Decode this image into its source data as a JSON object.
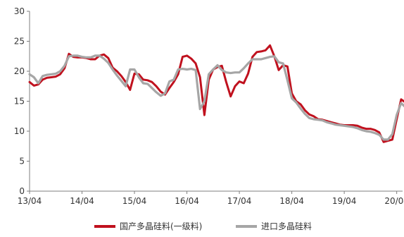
{
  "chart_data": {
    "type": "line",
    "title": "",
    "xlabel": "",
    "ylabel": "",
    "ylim": [
      0,
      30
    ],
    "y_ticks": [
      0,
      5,
      10,
      15,
      20,
      25,
      30
    ],
    "x_tick_labels": [
      "13/04",
      "14/04",
      "15/04",
      "16/04",
      "17/04",
      "18/04",
      "19/04",
      "20/04"
    ],
    "grid": false,
    "legend_position": "bottom",
    "series": [
      {
        "name": "国产多晶硅料(一级料)",
        "color": "#c0111e",
        "points": [
          [
            "2013-04",
            18.2
          ],
          [
            "2013-05",
            17.6
          ],
          [
            "2013-06",
            17.8
          ],
          [
            "2013-07",
            18.6
          ],
          [
            "2013-08",
            18.9
          ],
          [
            "2013-09",
            19.0
          ],
          [
            "2013-10",
            19.1
          ],
          [
            "2013-11",
            19.5
          ],
          [
            "2013-12",
            20.5
          ],
          [
            "2014-01",
            22.9
          ],
          [
            "2014-02",
            22.4
          ],
          [
            "2014-03",
            22.3
          ],
          [
            "2014-04",
            22.3
          ],
          [
            "2014-05",
            22.2
          ],
          [
            "2014-06",
            22.0
          ],
          [
            "2014-07",
            22.0
          ],
          [
            "2014-08",
            22.6
          ],
          [
            "2014-09",
            22.8
          ],
          [
            "2014-10",
            22.2
          ],
          [
            "2014-11",
            20.6
          ],
          [
            "2014-12",
            20.0
          ],
          [
            "2015-01",
            19.2
          ],
          [
            "2015-02",
            18.2
          ],
          [
            "2015-03",
            16.9
          ],
          [
            "2015-04",
            19.6
          ],
          [
            "2015-05",
            19.5
          ],
          [
            "2015-06",
            18.6
          ],
          [
            "2015-07",
            18.5
          ],
          [
            "2015-08",
            18.2
          ],
          [
            "2015-09",
            17.5
          ],
          [
            "2015-10",
            16.6
          ],
          [
            "2015-11",
            16.1
          ],
          [
            "2015-12",
            17.2
          ],
          [
            "2016-01",
            18.2
          ],
          [
            "2016-02",
            19.5
          ],
          [
            "2016-03",
            22.4
          ],
          [
            "2016-04",
            22.6
          ],
          [
            "2016-05",
            22.1
          ],
          [
            "2016-06",
            21.3
          ],
          [
            "2016-07",
            19.0
          ],
          [
            "2016-08",
            12.7
          ],
          [
            "2016-09",
            18.6
          ],
          [
            "2016-10",
            20.3
          ],
          [
            "2016-11",
            20.7
          ],
          [
            "2016-12",
            20.9
          ],
          [
            "2017-01",
            18.2
          ],
          [
            "2017-02",
            15.8
          ],
          [
            "2017-03",
            17.5
          ],
          [
            "2017-04",
            18.3
          ],
          [
            "2017-05",
            18.0
          ],
          [
            "2017-06",
            19.6
          ],
          [
            "2017-07",
            22.4
          ],
          [
            "2017-08",
            23.2
          ],
          [
            "2017-09",
            23.3
          ],
          [
            "2017-10",
            23.5
          ],
          [
            "2017-11",
            24.3
          ],
          [
            "2017-12",
            22.5
          ],
          [
            "2018-01",
            20.2
          ],
          [
            "2018-02",
            21.0
          ],
          [
            "2018-03",
            20.8
          ],
          [
            "2018-04",
            16.3
          ],
          [
            "2018-05",
            15.0
          ],
          [
            "2018-06",
            14.5
          ],
          [
            "2018-07",
            13.5
          ],
          [
            "2018-08",
            12.8
          ],
          [
            "2018-09",
            12.5
          ],
          [
            "2018-10",
            12.0
          ],
          [
            "2018-11",
            11.9
          ],
          [
            "2018-12",
            11.7
          ],
          [
            "2019-01",
            11.5
          ],
          [
            "2019-02",
            11.3
          ],
          [
            "2019-03",
            11.1
          ],
          [
            "2019-04",
            11.0
          ],
          [
            "2019-05",
            11.0
          ],
          [
            "2019-06",
            11.0
          ],
          [
            "2019-07",
            10.9
          ],
          [
            "2019-08",
            10.6
          ],
          [
            "2019-09",
            10.4
          ],
          [
            "2019-10",
            10.4
          ],
          [
            "2019-11",
            10.2
          ],
          [
            "2019-12",
            9.8
          ],
          [
            "2020-01",
            8.2
          ],
          [
            "2020-02",
            8.4
          ],
          [
            "2020-03",
            8.6
          ],
          [
            "2020-04",
            12.0
          ],
          [
            "2020-05",
            15.3
          ],
          [
            "2020-06",
            14.8
          ],
          [
            "2020-07",
            13.5
          ],
          [
            "2020-08",
            13.0
          ],
          [
            "2020-09",
            14.0
          ]
        ]
      },
      {
        "name": "进口多晶硅料",
        "color": "#a6a6a6",
        "points": [
          [
            "2013-04",
            19.5
          ],
          [
            "2013-05",
            19.0
          ],
          [
            "2013-06",
            18.0
          ],
          [
            "2013-07",
            19.2
          ],
          [
            "2013-08",
            19.4
          ],
          [
            "2013-09",
            19.5
          ],
          [
            "2013-10",
            19.6
          ],
          [
            "2013-11",
            20.0
          ],
          [
            "2013-12",
            20.9
          ],
          [
            "2014-01",
            22.5
          ],
          [
            "2014-02",
            22.6
          ],
          [
            "2014-03",
            22.6
          ],
          [
            "2014-04",
            22.4
          ],
          [
            "2014-05",
            22.3
          ],
          [
            "2014-06",
            22.3
          ],
          [
            "2014-07",
            22.6
          ],
          [
            "2014-08",
            22.6
          ],
          [
            "2014-09",
            22.1
          ],
          [
            "2014-10",
            21.4
          ],
          [
            "2014-11",
            20.3
          ],
          [
            "2014-12",
            19.3
          ],
          [
            "2015-01",
            18.4
          ],
          [
            "2015-02",
            17.5
          ],
          [
            "2015-03",
            20.3
          ],
          [
            "2015-04",
            20.3
          ],
          [
            "2015-05",
            19.0
          ],
          [
            "2015-06",
            18.0
          ],
          [
            "2015-07",
            17.9
          ],
          [
            "2015-08",
            17.2
          ],
          [
            "2015-09",
            16.5
          ],
          [
            "2015-10",
            15.9
          ],
          [
            "2015-11",
            16.3
          ],
          [
            "2015-12",
            18.3
          ],
          [
            "2016-01",
            18.6
          ],
          [
            "2016-02",
            20.3
          ],
          [
            "2016-03",
            20.4
          ],
          [
            "2016-04",
            20.3
          ],
          [
            "2016-05",
            20.4
          ],
          [
            "2016-06",
            20.2
          ],
          [
            "2016-07",
            13.7
          ],
          [
            "2016-08",
            15.0
          ],
          [
            "2016-09",
            19.5
          ],
          [
            "2016-10",
            20.3
          ],
          [
            "2016-11",
            21.0
          ],
          [
            "2016-12",
            20.2
          ],
          [
            "2017-01",
            19.8
          ],
          [
            "2017-02",
            19.7
          ],
          [
            "2017-03",
            19.8
          ],
          [
            "2017-04",
            19.8
          ],
          [
            "2017-05",
            20.5
          ],
          [
            "2017-06",
            21.3
          ],
          [
            "2017-07",
            22.0
          ],
          [
            "2017-08",
            22.0
          ],
          [
            "2017-09",
            22.0
          ],
          [
            "2017-10",
            22.2
          ],
          [
            "2017-11",
            22.4
          ],
          [
            "2017-12",
            22.5
          ],
          [
            "2018-01",
            21.5
          ],
          [
            "2018-02",
            21.3
          ],
          [
            "2018-03",
            18.5
          ],
          [
            "2018-04",
            15.5
          ],
          [
            "2018-05",
            14.8
          ],
          [
            "2018-06",
            13.8
          ],
          [
            "2018-07",
            12.9
          ],
          [
            "2018-08",
            12.2
          ],
          [
            "2018-09",
            12.0
          ],
          [
            "2018-10",
            11.9
          ],
          [
            "2018-11",
            11.8
          ],
          [
            "2018-12",
            11.5
          ],
          [
            "2019-01",
            11.3
          ],
          [
            "2019-02",
            11.1
          ],
          [
            "2019-03",
            11.0
          ],
          [
            "2019-04",
            10.9
          ],
          [
            "2019-05",
            10.8
          ],
          [
            "2019-06",
            10.7
          ],
          [
            "2019-07",
            10.5
          ],
          [
            "2019-08",
            10.2
          ],
          [
            "2019-09",
            10.0
          ],
          [
            "2019-10",
            9.9
          ],
          [
            "2019-11",
            9.7
          ],
          [
            "2019-12",
            9.4
          ],
          [
            "2020-01",
            8.6
          ],
          [
            "2020-02",
            8.6
          ],
          [
            "2020-03",
            9.5
          ],
          [
            "2020-04",
            12.7
          ],
          [
            "2020-05",
            14.7
          ],
          [
            "2020-06",
            14.0
          ],
          [
            "2020-07",
            13.3
          ],
          [
            "2020-08",
            12.6
          ],
          [
            "2020-09",
            12.5
          ]
        ]
      }
    ]
  }
}
